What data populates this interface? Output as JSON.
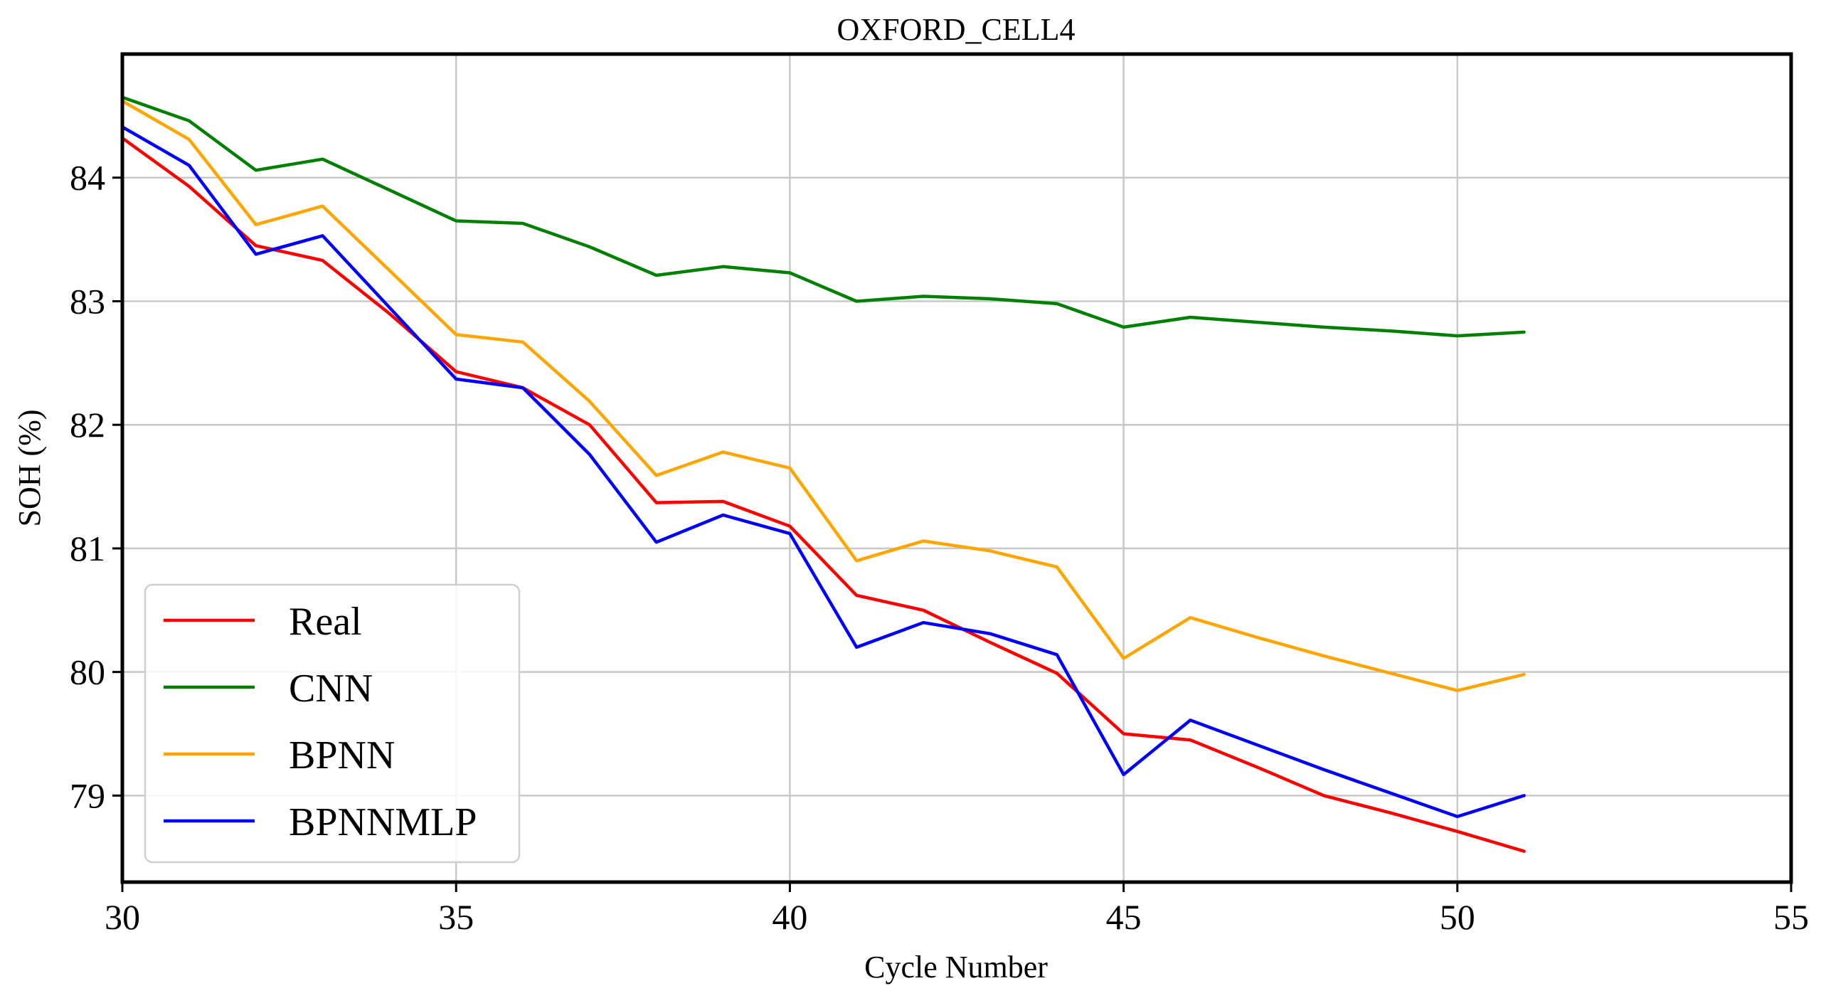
{
  "chart_data": {
    "type": "line",
    "title": "OXFORD_CELL4",
    "xlabel": "Cycle Number",
    "ylabel": "SOH (%)",
    "xlim": [
      30,
      55
    ],
    "ylim": [
      78.3,
      85.0
    ],
    "xticks": [
      30,
      35,
      40,
      45,
      50,
      55
    ],
    "yticks": [
      79,
      80,
      81,
      82,
      83,
      84
    ],
    "xtick_labels": [
      "30",
      "35",
      "40",
      "45",
      "50",
      "55"
    ],
    "ytick_labels": [
      "79",
      "80",
      "81",
      "82",
      "83",
      "84"
    ],
    "grid": true,
    "legend_position": "bottom-left",
    "series": [
      {
        "name": "Real",
        "color": "#ff0000",
        "x": [
          30,
          31,
          32,
          33,
          34,
          35,
          36,
          37,
          38,
          39,
          40,
          41,
          42,
          43,
          44,
          45,
          46,
          47,
          48,
          49,
          50,
          51
        ],
        "y": [
          84.32,
          83.93,
          83.45,
          83.33,
          82.9,
          82.43,
          82.3,
          82.0,
          81.37,
          81.38,
          81.18,
          80.62,
          80.5,
          80.24,
          79.99,
          79.5,
          79.45,
          79.23,
          79.0,
          78.86,
          78.71,
          78.55
        ]
      },
      {
        "name": "CNN",
        "color": "#008000",
        "x": [
          30,
          31,
          32,
          33,
          34,
          35,
          36,
          37,
          38,
          39,
          40,
          41,
          42,
          43,
          44,
          45,
          46,
          47,
          48,
          49,
          50,
          51
        ],
        "y": [
          84.65,
          84.46,
          84.06,
          84.15,
          83.9,
          83.65,
          83.63,
          83.44,
          83.21,
          83.28,
          83.23,
          83.0,
          83.04,
          83.02,
          82.98,
          82.79,
          82.87,
          82.83,
          82.79,
          82.76,
          82.72,
          82.75
        ]
      },
      {
        "name": "BPNN",
        "color": "#ffa500",
        "x": [
          30,
          31,
          32,
          33,
          34,
          35,
          36,
          37,
          38,
          39,
          40,
          41,
          42,
          43,
          44,
          45,
          46,
          47,
          48,
          49,
          50,
          51
        ],
        "y": [
          84.62,
          84.31,
          83.62,
          83.77,
          83.25,
          82.73,
          82.67,
          82.19,
          81.59,
          81.78,
          81.65,
          80.9,
          81.06,
          80.98,
          80.85,
          80.11,
          80.44,
          80.28,
          80.13,
          79.99,
          79.85,
          79.98
        ]
      },
      {
        "name": "BPNNMLP",
        "color": "#0000ff",
        "x": [
          30,
          31,
          32,
          33,
          34,
          35,
          36,
          37,
          38,
          39,
          40,
          41,
          42,
          43,
          44,
          45,
          46,
          47,
          48,
          49,
          50,
          51
        ],
        "y": [
          84.41,
          84.1,
          83.38,
          83.53,
          82.95,
          82.37,
          82.3,
          81.76,
          81.05,
          81.27,
          81.12,
          80.2,
          80.4,
          80.31,
          80.14,
          79.17,
          79.61,
          79.41,
          79.21,
          79.02,
          78.83,
          79.0
        ]
      }
    ]
  }
}
